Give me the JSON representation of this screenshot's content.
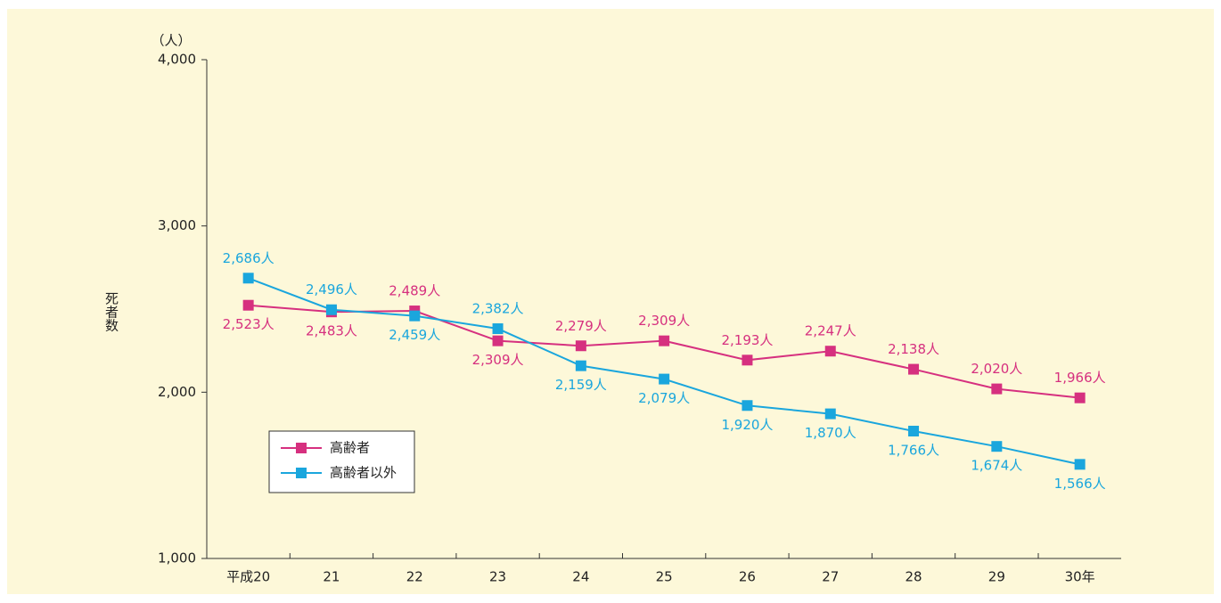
{
  "chart_data": {
    "type": "line",
    "y_unit": "（人）",
    "y_label": "死者数",
    "categories": [
      "平成20",
      "21",
      "22",
      "23",
      "24",
      "25",
      "26",
      "27",
      "28",
      "29",
      "30年"
    ],
    "series": [
      {
        "name": "高齢者",
        "color": "#d6307f",
        "values": [
          2523,
          2483,
          2489,
          2309,
          2279,
          2309,
          2193,
          2247,
          2138,
          2020,
          1966
        ],
        "value_labels": [
          "2,523人",
          "2,483人",
          "2,489人",
          "2,309人",
          "2,279人",
          "2,309人",
          "2,193人",
          "2,247人",
          "2,138人",
          "2,020人",
          "1,966人"
        ]
      },
      {
        "name": "高齢者以外",
        "color": "#1aa6dd",
        "values": [
          2686,
          2496,
          2459,
          2382,
          2159,
          2079,
          1920,
          1870,
          1766,
          1674,
          1566
        ],
        "value_labels": [
          "2,686人",
          "2,496人",
          "2,459人",
          "2,382人",
          "2,159人",
          "2,079人",
          "1,920人",
          "1,870人",
          "1,766人",
          "1,674人",
          "1,566人"
        ]
      }
    ],
    "ylim": [
      1000,
      4000
    ],
    "yticks": [
      {
        "value": 1000,
        "label": "1,000"
      },
      {
        "value": 2000,
        "label": "2,000"
      },
      {
        "value": 3000,
        "label": "3,000"
      },
      {
        "value": 4000,
        "label": "4,000"
      }
    ],
    "grid": false,
    "legend": "lower left"
  }
}
